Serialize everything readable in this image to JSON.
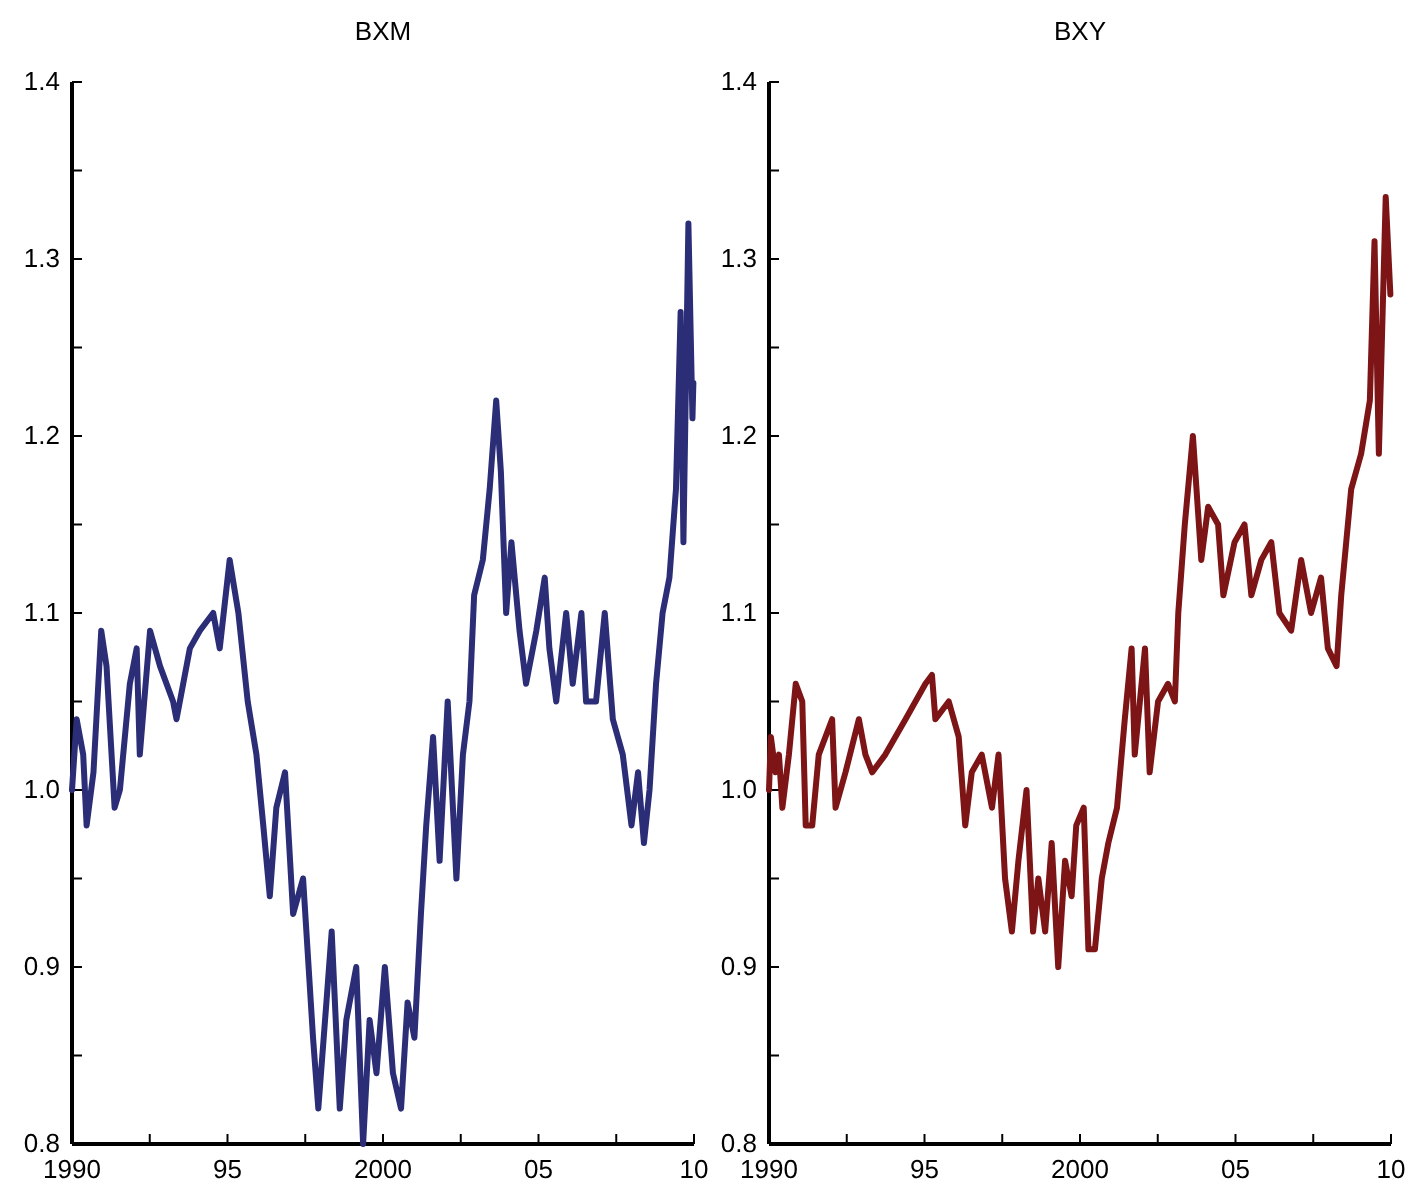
{
  "chart_data": [
    {
      "type": "line",
      "title": "BXM",
      "xlim": [
        1990,
        2010
      ],
      "ylim": [
        0.8,
        1.4
      ],
      "xticks": [
        {
          "value": 1990,
          "label": "1990"
        },
        {
          "value": 1992.5,
          "label": null
        },
        {
          "value": 1995,
          "label": "95"
        },
        {
          "value": 1997.5,
          "label": null
        },
        {
          "value": 2000,
          "label": "2000"
        },
        {
          "value": 2002.5,
          "label": null
        },
        {
          "value": 2005,
          "label": "05"
        },
        {
          "value": 2007.5,
          "label": null
        },
        {
          "value": 2010,
          "label": "10"
        }
      ],
      "yticks": [
        0.8,
        {
          "value": 0.85,
          "label": null
        },
        0.9,
        {
          "value": 0.95,
          "label": null
        },
        {
          "value": 1,
          "label": "1.0"
        },
        {
          "value": 1.05,
          "label": null
        },
        1.1,
        {
          "value": 1.15,
          "label": null
        },
        1.2,
        {
          "value": 1.25,
          "label": null
        },
        1.3,
        {
          "value": 1.35,
          "label": null
        },
        1.4
      ],
      "series": [
        {
          "color": "#2b2d77",
          "x": [
            1990.0,
            1990.15,
            1990.36,
            1990.47,
            1990.69,
            1990.94,
            1991.11,
            1991.37,
            1991.54,
            1991.86,
            1992.08,
            1992.18,
            1992.51,
            1992.83,
            1993.25,
            1993.36,
            1993.79,
            1994.11,
            1994.54,
            1994.75,
            1995.07,
            1995.35,
            1995.65,
            1995.93,
            1996.15,
            1996.36,
            1996.57,
            1996.85,
            1997.11,
            1997.43,
            1997.75,
            1997.92,
            1998.18,
            1998.35,
            1998.61,
            1998.82,
            1999.14,
            1999.36,
            1999.57,
            1999.79,
            2000.06,
            2000.32,
            2000.58,
            2000.79,
            2001.01,
            2001.22,
            2001.39,
            2001.61,
            2001.82,
            2002.08,
            2002.36,
            2002.57,
            2002.78,
            2002.93,
            2003.21,
            2003.43,
            2003.64,
            2003.79,
            2003.96,
            2004.13,
            2004.39,
            2004.6,
            2004.93,
            2005.2,
            2005.35,
            2005.57,
            2005.89,
            2006.1,
            2006.38,
            2006.53,
            2006.85,
            2007.13,
            2007.39,
            2007.71,
            2007.99,
            2008.2,
            2008.39,
            2008.57,
            2008.78,
            2008.99,
            2009.21,
            2009.42,
            2009.57,
            2009.66,
            2009.82,
            2009.95,
            2009.98
          ],
          "values": [
            1.0,
            1.04,
            1.02,
            0.98,
            1.01,
            1.09,
            1.07,
            0.99,
            1.0,
            1.06,
            1.08,
            1.02,
            1.09,
            1.07,
            1.05,
            1.04,
            1.08,
            1.09,
            1.1,
            1.08,
            1.13,
            1.1,
            1.05,
            1.02,
            0.98,
            0.94,
            0.99,
            1.01,
            0.93,
            0.95,
            0.86,
            0.82,
            0.88,
            0.92,
            0.82,
            0.87,
            0.9,
            0.8,
            0.87,
            0.84,
            0.9,
            0.84,
            0.82,
            0.88,
            0.86,
            0.93,
            0.98,
            1.03,
            0.96,
            1.05,
            0.95,
            1.02,
            1.05,
            1.11,
            1.13,
            1.17,
            1.22,
            1.18,
            1.1,
            1.14,
            1.09,
            1.06,
            1.09,
            1.12,
            1.08,
            1.05,
            1.1,
            1.06,
            1.1,
            1.05,
            1.05,
            1.1,
            1.04,
            1.02,
            0.98,
            1.01,
            0.97,
            1.0,
            1.06,
            1.1,
            1.12,
            1.17,
            1.27,
            1.14,
            1.32,
            1.21,
            1.23
          ]
        }
      ]
    },
    {
      "type": "line",
      "title": "BXY",
      "xlim": [
        1990,
        2010
      ],
      "ylim": [
        0.8,
        1.4
      ],
      "xticks": [
        {
          "value": 1990,
          "label": "1990"
        },
        {
          "value": 1992.5,
          "label": null
        },
        {
          "value": 1995,
          "label": "95"
        },
        {
          "value": 1997.5,
          "label": null
        },
        {
          "value": 2000,
          "label": "2000"
        },
        {
          "value": 2002.5,
          "label": null
        },
        {
          "value": 2005,
          "label": "05"
        },
        {
          "value": 2007.5,
          "label": null
        },
        {
          "value": 2010,
          "label": "10"
        }
      ],
      "yticks": [
        0.8,
        {
          "value": 0.85,
          "label": null
        },
        0.9,
        {
          "value": 0.95,
          "label": null
        },
        {
          "value": 1,
          "label": "1.0"
        },
        {
          "value": 1.05,
          "label": null
        },
        1.1,
        {
          "value": 1.15,
          "label": null
        },
        1.2,
        {
          "value": 1.25,
          "label": null
        },
        1.3,
        {
          "value": 1.35,
          "label": null
        },
        1.4
      ],
      "series": [
        {
          "color": "#7d1416",
          "x": [
            1990.0,
            1990.06,
            1990.21,
            1990.32,
            1990.43,
            1990.64,
            1990.86,
            1991.07,
            1991.18,
            1991.39,
            1991.6,
            1992.03,
            1992.14,
            1992.46,
            1992.89,
            1993.1,
            1993.32,
            1993.74,
            1994.39,
            1995.03,
            1995.24,
            1995.35,
            1995.78,
            1996.1,
            1996.31,
            1996.52,
            1996.84,
            1997.17,
            1997.38,
            1997.59,
            1997.81,
            1998.02,
            1998.28,
            1998.49,
            1998.66,
            1998.88,
            1999.09,
            1999.3,
            1999.52,
            1999.73,
            1999.88,
            2000.12,
            2000.27,
            2000.48,
            2000.7,
            2000.91,
            2001.19,
            2001.44,
            2001.66,
            2001.76,
            2002.09,
            2002.24,
            2002.51,
            2002.83,
            2003.05,
            2003.16,
            2003.37,
            2003.63,
            2003.9,
            2004.12,
            2004.44,
            2004.61,
            2004.97,
            2005.29,
            2005.51,
            2005.83,
            2006.15,
            2006.41,
            2006.79,
            2007.11,
            2007.43,
            2007.75,
            2007.97,
            2008.25,
            2008.4,
            2008.72,
            2009.04,
            2009.32,
            2009.47,
            2009.61,
            2009.83,
            2009.98
          ],
          "values": [
            1.0,
            1.03,
            1.01,
            1.02,
            0.99,
            1.02,
            1.06,
            1.05,
            0.98,
            0.98,
            1.02,
            1.04,
            0.99,
            1.01,
            1.04,
            1.02,
            1.01,
            1.02,
            1.04,
            1.06,
            1.065,
            1.04,
            1.05,
            1.03,
            0.98,
            1.01,
            1.02,
            0.99,
            1.02,
            0.95,
            0.92,
            0.96,
            1.0,
            0.92,
            0.95,
            0.92,
            0.97,
            0.9,
            0.96,
            0.94,
            0.98,
            0.99,
            0.91,
            0.91,
            0.95,
            0.97,
            0.99,
            1.04,
            1.08,
            1.02,
            1.08,
            1.01,
            1.05,
            1.06,
            1.05,
            1.1,
            1.15,
            1.2,
            1.13,
            1.16,
            1.15,
            1.11,
            1.14,
            1.15,
            1.11,
            1.13,
            1.14,
            1.1,
            1.09,
            1.13,
            1.1,
            1.12,
            1.08,
            1.07,
            1.11,
            1.17,
            1.19,
            1.22,
            1.31,
            1.19,
            1.335,
            1.28
          ]
        }
      ]
    }
  ]
}
